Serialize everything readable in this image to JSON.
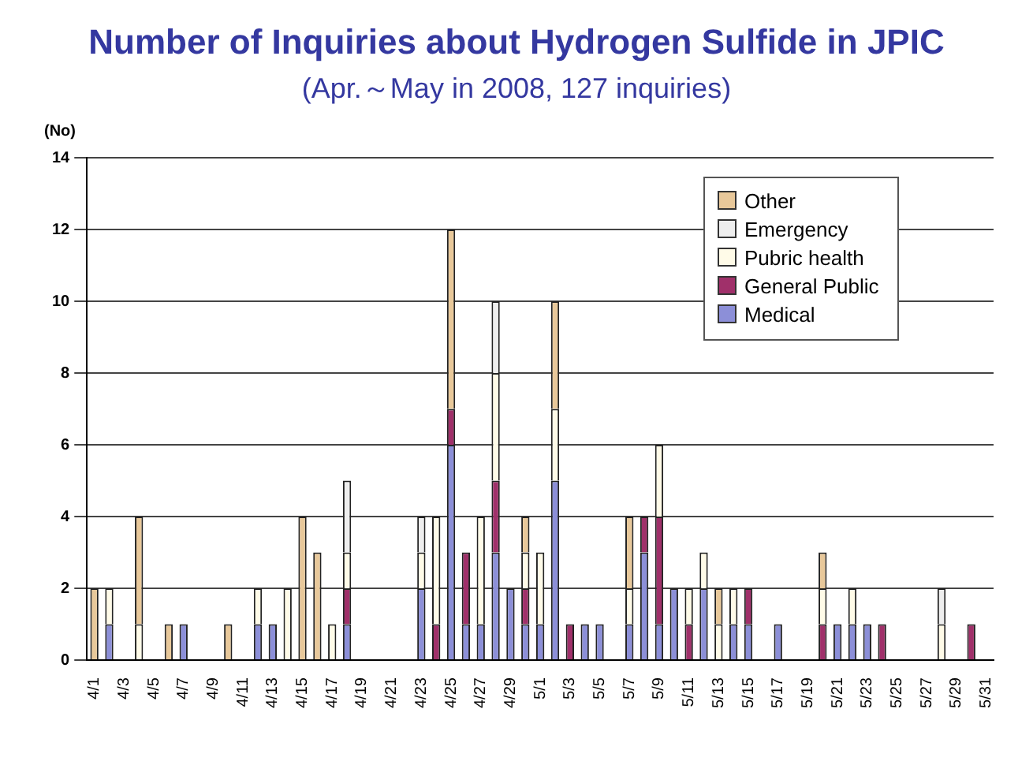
{
  "chart_data": {
    "type": "bar",
    "stacked": true,
    "title": "Number of Inquiries about Hydrogen Sulfide in JPIC",
    "subtitle": "(Apr.～May in 2008, 127 inquiries)",
    "ylabel": "(No)",
    "categories": [
      "4/1",
      null,
      "4/3",
      null,
      "4/5",
      null,
      "4/7",
      null,
      "4/9",
      null,
      "4/11",
      null,
      "4/13",
      null,
      "4/15",
      null,
      "4/17",
      null,
      "4/19",
      null,
      "4/21",
      null,
      "4/23",
      null,
      "4/25",
      null,
      "4/27",
      null,
      "4/29",
      null,
      "5/1",
      null,
      "5/3",
      null,
      "5/5",
      null,
      "5/7",
      null,
      "5/9",
      null,
      "5/11",
      null,
      "5/13",
      null,
      "5/15",
      null,
      "5/17",
      null,
      "5/19",
      null,
      "5/21",
      null,
      "5/23",
      null,
      "5/25",
      null,
      "5/27",
      null,
      "5/29",
      null,
      "5/31"
    ],
    "series": [
      {
        "name": "Medical",
        "color": "#8c8fd8",
        "values": [
          0,
          1,
          0,
          0,
          0,
          0,
          1,
          0,
          0,
          0,
          0,
          1,
          1,
          0,
          0,
          0,
          0,
          1,
          0,
          0,
          0,
          0,
          2,
          0,
          6,
          1,
          1,
          3,
          2,
          1,
          1,
          5,
          0,
          1,
          1,
          0,
          1,
          3,
          1,
          2,
          0,
          2,
          0,
          1,
          1,
          0,
          1,
          0,
          0,
          0,
          1,
          1,
          1,
          0,
          0,
          0,
          0,
          0,
          0,
          0,
          0
        ]
      },
      {
        "name": "General Public",
        "color": "#a0306a",
        "values": [
          0,
          0,
          0,
          0,
          0,
          0,
          0,
          0,
          0,
          0,
          0,
          0,
          0,
          0,
          0,
          0,
          0,
          1,
          0,
          0,
          0,
          0,
          0,
          1,
          1,
          2,
          0,
          2,
          0,
          1,
          0,
          0,
          1,
          0,
          0,
          0,
          0,
          1,
          3,
          0,
          1,
          0,
          0,
          0,
          1,
          0,
          0,
          0,
          0,
          1,
          0,
          0,
          0,
          1,
          0,
          0,
          0,
          0,
          0,
          1,
          0
        ]
      },
      {
        "name": "Pubric health",
        "color": "#fffbe8",
        "values": [
          0,
          1,
          0,
          1,
          0,
          0,
          0,
          0,
          0,
          0,
          0,
          1,
          0,
          2,
          0,
          0,
          1,
          1,
          0,
          0,
          0,
          0,
          1,
          3,
          0,
          0,
          3,
          3,
          0,
          1,
          2,
          2,
          0,
          0,
          0,
          0,
          1,
          0,
          2,
          0,
          1,
          1,
          1,
          1,
          0,
          0,
          0,
          0,
          0,
          1,
          0,
          1,
          0,
          0,
          0,
          0,
          0,
          1,
          0,
          0,
          0
        ]
      },
      {
        "name": "Emergency",
        "color": "#eeeeee",
        "values": [
          0,
          0,
          0,
          0,
          0,
          0,
          0,
          0,
          0,
          0,
          0,
          0,
          0,
          0,
          0,
          0,
          0,
          2,
          0,
          0,
          0,
          0,
          1,
          0,
          0,
          0,
          0,
          2,
          0,
          0,
          0,
          0,
          0,
          0,
          0,
          0,
          0,
          0,
          0,
          0,
          0,
          0,
          0,
          0,
          0,
          0,
          0,
          0,
          0,
          0,
          0,
          0,
          0,
          0,
          0,
          0,
          0,
          1,
          0,
          0,
          0
        ]
      },
      {
        "name": "Other",
        "color": "#e8c89a",
        "values": [
          2,
          0,
          0,
          3,
          0,
          1,
          0,
          0,
          0,
          1,
          0,
          0,
          0,
          0,
          4,
          3,
          0,
          0,
          0,
          0,
          0,
          0,
          0,
          0,
          5,
          0,
          0,
          0,
          0,
          1,
          0,
          3,
          0,
          0,
          0,
          0,
          2,
          0,
          0,
          0,
          0,
          0,
          1,
          0,
          0,
          0,
          0,
          0,
          0,
          1,
          0,
          0,
          0,
          0,
          0,
          0,
          0,
          0,
          0,
          0,
          0
        ]
      }
    ],
    "ylim": [
      0,
      14
    ],
    "yticks": [
      0,
      2,
      4,
      6,
      8,
      10,
      12,
      14
    ],
    "grid": "y",
    "legend": "top right"
  }
}
